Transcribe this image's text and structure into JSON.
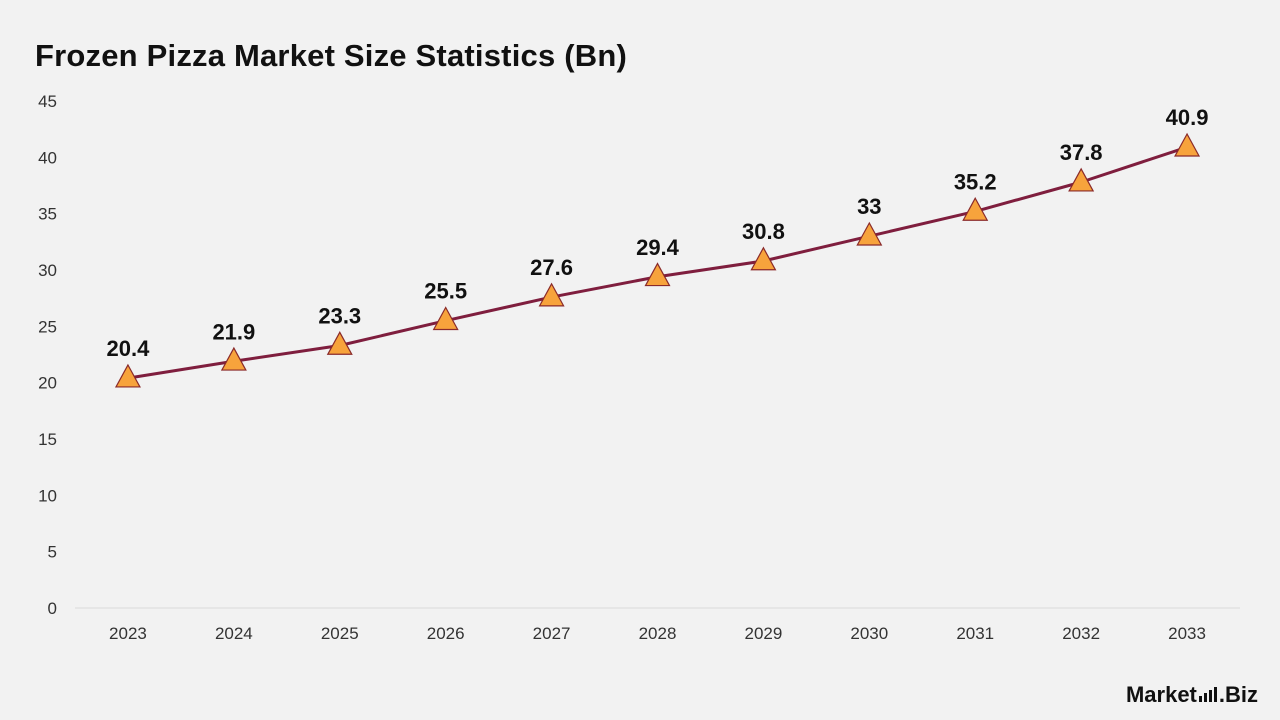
{
  "chart_data": {
    "type": "line",
    "title": "Frozen Pizza Market Size Statistics (Bn)",
    "xlabel": "",
    "ylabel": "",
    "categories": [
      "2023",
      "2024",
      "2025",
      "2026",
      "2027",
      "2028",
      "2029",
      "2030",
      "2031",
      "2032",
      "2033"
    ],
    "series": [
      {
        "values": [
          20.4,
          21.9,
          23.3,
          25.5,
          27.6,
          29.4,
          30.8,
          33,
          35.2,
          37.8,
          40.9
        ]
      }
    ],
    "ylim": [
      0,
      45
    ],
    "yticks": [
      0,
      5,
      10,
      15,
      20,
      25,
      30,
      35,
      40,
      45
    ],
    "grid": false,
    "legend": "none",
    "marker": "triangle",
    "line_color": "#7f1e3e",
    "marker_color": "#f7a33c",
    "marker_edge_color": "#8a2a2a"
  },
  "branding": {
    "logo_left": "Mark",
    "logo_mid": "et",
    "logo_right": ".Biz"
  }
}
